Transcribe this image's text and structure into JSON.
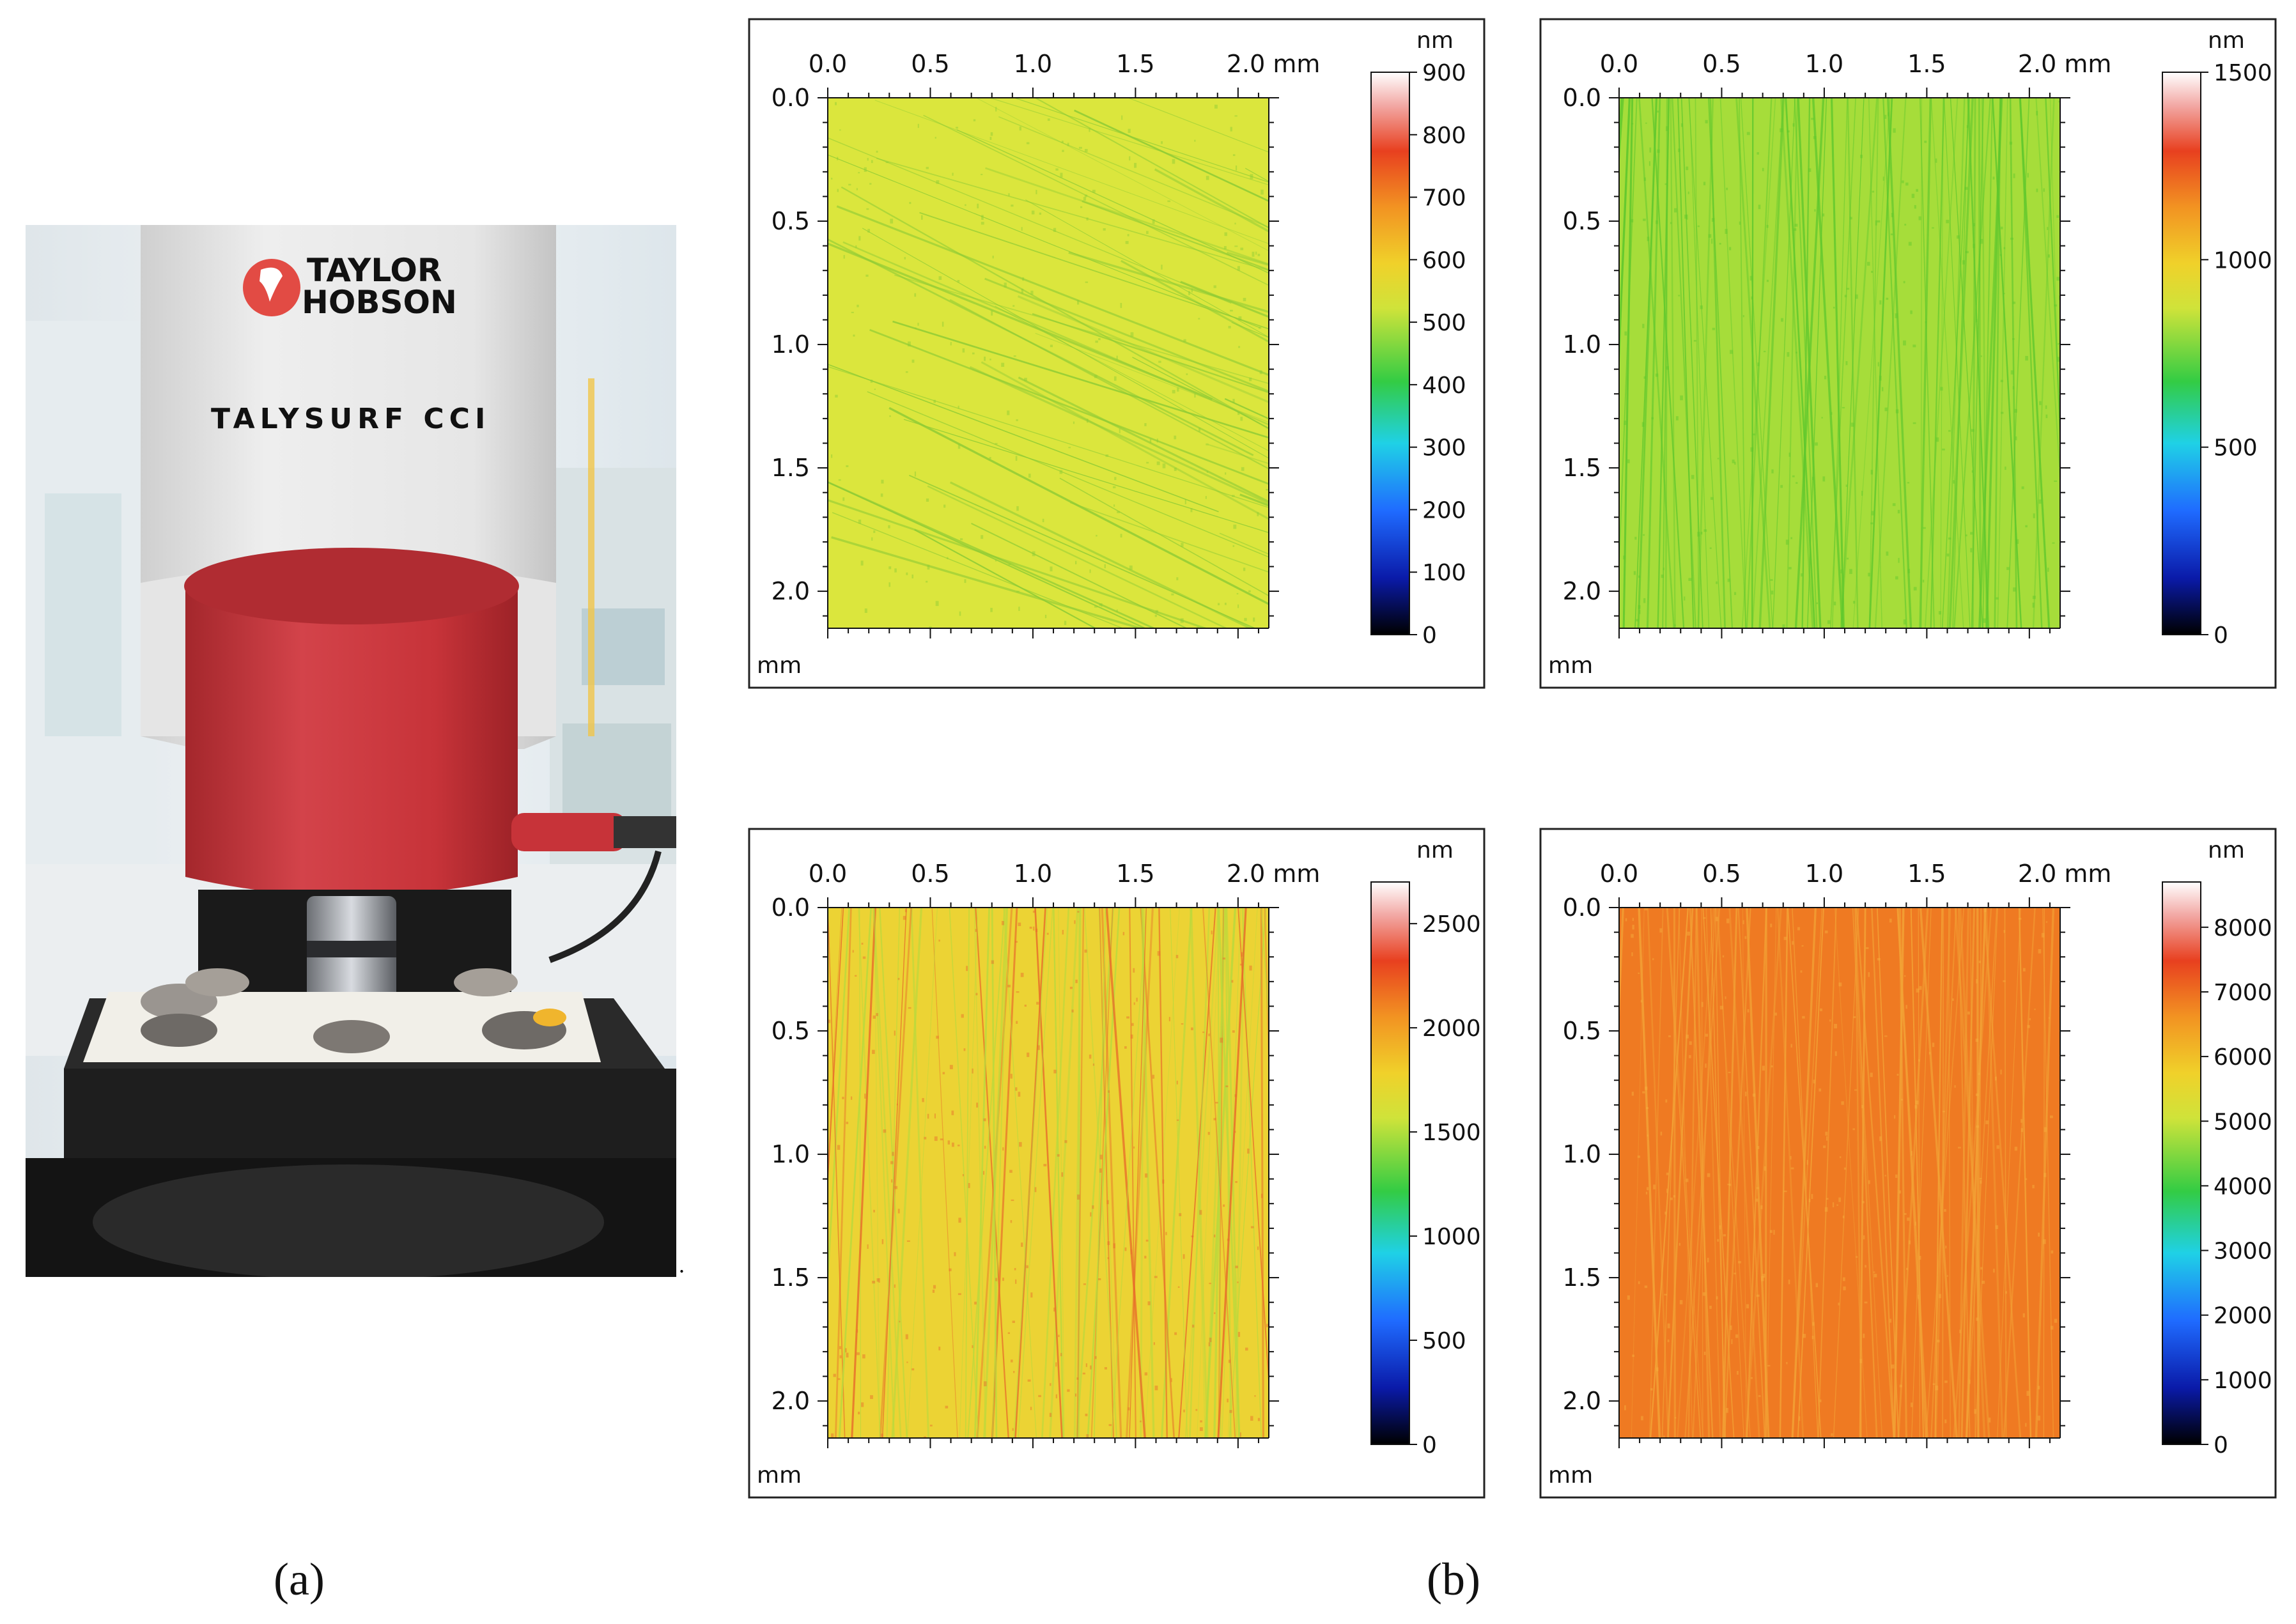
{
  "figure": {
    "panel_a_label": "(a)",
    "panel_b_label": "(b)",
    "trailing_period": "."
  },
  "instrument_photo": {
    "brand_line1": "TAYLOR",
    "brand_line2": "HOBSON",
    "model": "TALYSURF CCI",
    "colors": {
      "body": "#e9e9e9",
      "objective_housing": "#cf3b40",
      "brand": "#7a6f6a",
      "model_text": "#e0674a",
      "logo": "#e24b44"
    }
  },
  "surface_maps": [
    {
      "id": "top-left",
      "x_ticks": [
        "0.0",
        "0.5",
        "1.0",
        "1.5",
        "2.0 mm"
      ],
      "y_ticks": [
        "0.0",
        "0.5",
        "1.0",
        "1.5",
        "2.0"
      ],
      "axis_unit": "mm",
      "scale_unit": "nm",
      "scale_ticks": [
        "900",
        "800",
        "700",
        "600",
        "500",
        "400",
        "300",
        "200",
        "100",
        "0"
      ],
      "scale_range": [
        0,
        900
      ],
      "surface_color": "#dbe63d",
      "scratch_color": "#8ccb35",
      "scratch_style": "diagonal"
    },
    {
      "id": "top-right",
      "x_ticks": [
        "0.0",
        "0.5",
        "1.0",
        "1.5",
        "2.0 mm"
      ],
      "y_ticks": [
        "0.0",
        "0.5",
        "1.0",
        "1.5",
        "2.0"
      ],
      "axis_unit": "mm",
      "scale_unit": "nm",
      "scale_ticks": [
        "1500",
        "1000",
        "500",
        "0"
      ],
      "scale_range": [
        0,
        1500
      ],
      "surface_color": "#a6dd3a",
      "scratch_color": "#5ec82d",
      "scratch_style": "vertical"
    },
    {
      "id": "bottom-left",
      "x_ticks": [
        "0.0",
        "0.5",
        "1.0",
        "1.5",
        "2.0 mm"
      ],
      "y_ticks": [
        "0.0",
        "0.5",
        "1.0",
        "1.5",
        "2.0"
      ],
      "axis_unit": "mm",
      "scale_unit": "nm",
      "scale_ticks": [
        "2500",
        "2000",
        "1500",
        "1000",
        "500",
        "0"
      ],
      "scale_range": [
        0,
        2700
      ],
      "surface_color": "#ecd334",
      "scratch_color": "#b9da3d",
      "scratch_style": "vertical-orange"
    },
    {
      "id": "bottom-right",
      "x_ticks": [
        "0.0",
        "0.5",
        "1.0",
        "1.5",
        "2.0 mm"
      ],
      "y_ticks": [
        "0.0",
        "0.5",
        "1.0",
        "1.5",
        "2.0"
      ],
      "axis_unit": "mm",
      "scale_unit": "nm",
      "scale_ticks": [
        "8000",
        "7000",
        "6000",
        "5000",
        "4000",
        "3000",
        "2000",
        "1000",
        "0"
      ],
      "scale_range": [
        0,
        8700
      ],
      "surface_color": "#ef7a22",
      "scratch_color": "#f3a436",
      "scratch_style": "vertical-light"
    }
  ]
}
